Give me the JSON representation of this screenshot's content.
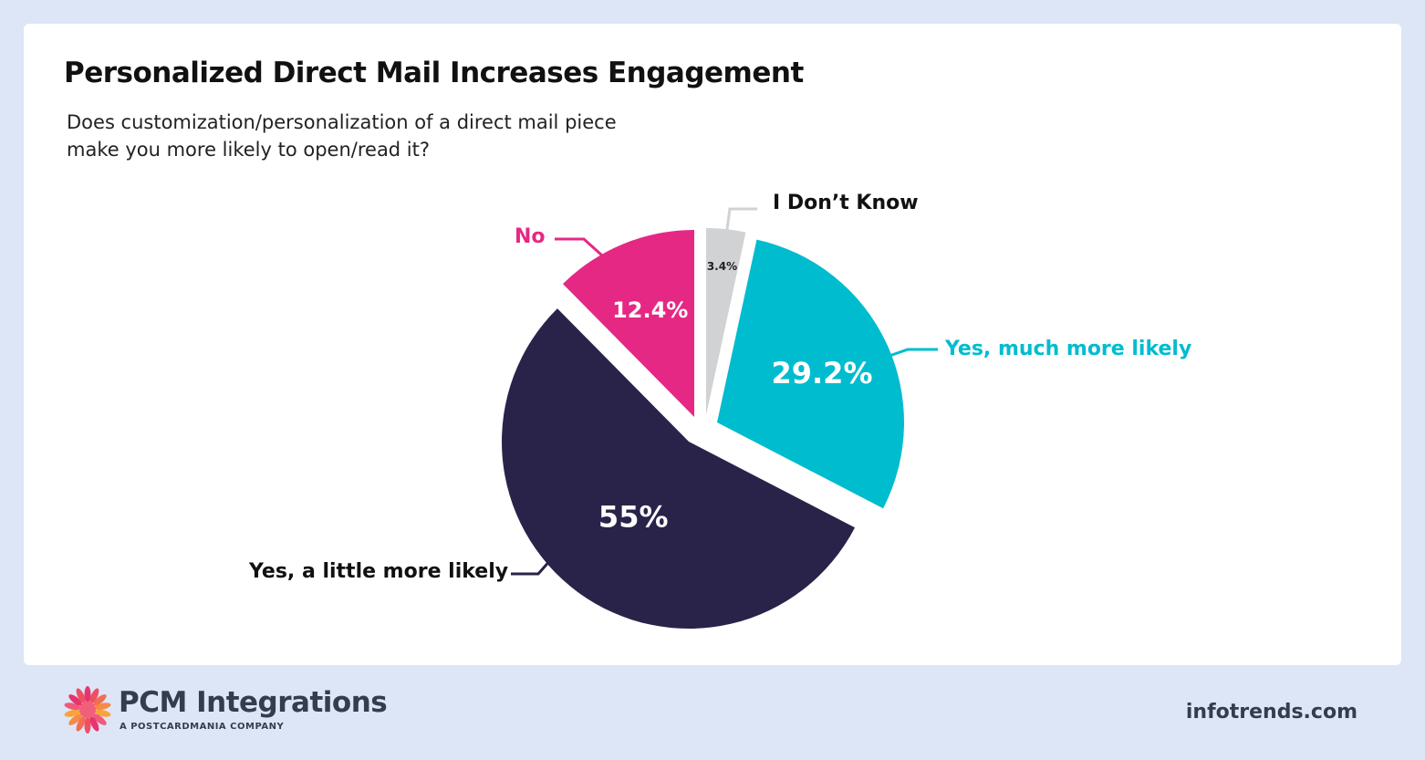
{
  "chart_data": {
    "type": "pie",
    "title": "Personalized Direct Mail Increases Engagement",
    "subtitle": "Does customization/personalization of a direct mail piece make you more likely to open/read it?",
    "slices": [
      {
        "label": "I Don’t Know",
        "value": 3.4,
        "display": "3.4%",
        "color": "#d1d2d4",
        "text_color": "#222222"
      },
      {
        "label": "Yes, much more likely",
        "value": 29.2,
        "display": "29.2%",
        "color": "#00bccf",
        "text_color": "#ffffff"
      },
      {
        "label": "Yes, a little more likely",
        "value": 55,
        "display": "55%",
        "color": "#29234a",
        "text_color": "#ffffff"
      },
      {
        "label": "No",
        "value": 12.4,
        "display": "12.4%",
        "color": "#e52884",
        "text_color": "#ffffff"
      }
    ],
    "start_angle": "12 o'clock",
    "direction": "clockwise",
    "exploded": true
  },
  "footer": {
    "brand": "PCM Integrations",
    "brand_sub": "A POSTCARDMANIA COMPANY",
    "site": "infotrends.com"
  }
}
